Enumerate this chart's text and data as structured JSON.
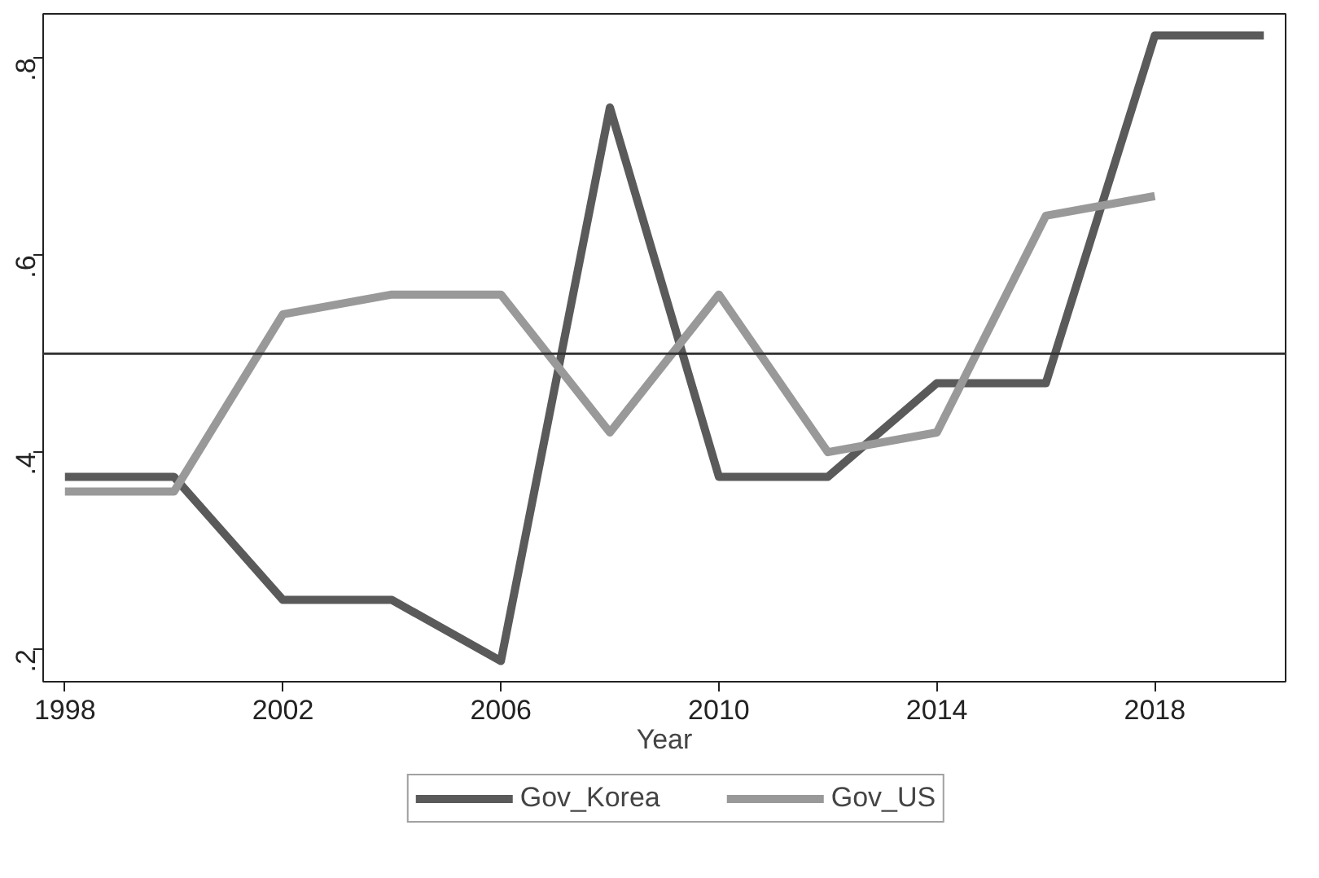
{
  "chart_data": {
    "type": "line",
    "xlabel": "Year",
    "x": [
      1998,
      2000,
      2002,
      2004,
      2006,
      2008,
      2010,
      2012,
      2014,
      2016,
      2018,
      2020
    ],
    "series": [
      {
        "name": "Gov_Korea",
        "color": "#5a5a5a",
        "values": [
          0.375,
          0.375,
          0.25,
          0.25,
          0.188,
          0.75,
          0.375,
          0.375,
          0.47,
          0.47,
          0.823,
          0.823
        ]
      },
      {
        "name": "Gov_US",
        "color": "#999999",
        "values": [
          0.36,
          0.36,
          0.54,
          0.56,
          0.56,
          0.42,
          0.56,
          0.4,
          0.42,
          0.64,
          0.66,
          null
        ]
      }
    ],
    "xlim": [
      1997.6,
      2020.4
    ],
    "ylim": [
      0.167,
      0.845
    ],
    "xticks": [
      1998,
      2002,
      2006,
      2010,
      2014,
      2018
    ],
    "yticks": [
      {
        "value": 0.2,
        "label": ".2"
      },
      {
        "value": 0.4,
        "label": ".4"
      },
      {
        "value": 0.6,
        "label": ".6"
      },
      {
        "value": 0.8,
        "label": ".8"
      }
    ],
    "ref_lines": [
      {
        "axis": "y",
        "value": 0.5,
        "color": "#333333"
      }
    ],
    "grid": false,
    "legend": "bottom",
    "line_style": "solid",
    "marker": "none"
  }
}
